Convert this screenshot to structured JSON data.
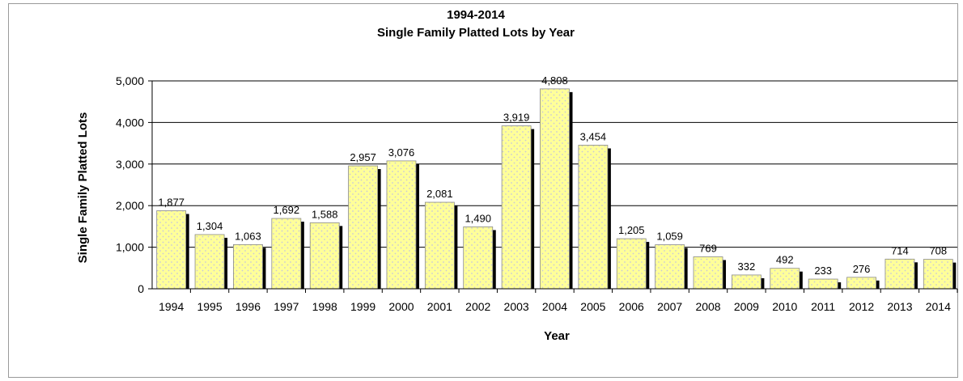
{
  "chart_data": {
    "type": "bar",
    "title": "1994-2014",
    "subtitle": "Single Family Platted Lots by Year",
    "xlabel": "Year",
    "ylabel": "Single Family Platted Lots",
    "ylim": [
      0,
      5000
    ],
    "yticks": [
      "0",
      "1,000",
      "2,000",
      "3,000",
      "4,000",
      "5,000"
    ],
    "grid": true,
    "legend": "none",
    "bar_color": "#ffff99",
    "bar_dot_color": "#c8c8d8",
    "shadow_color": "#000000",
    "categories": [
      "1994",
      "1995",
      "1996",
      "1997",
      "1998",
      "1999",
      "2000",
      "2001",
      "2002",
      "2003",
      "2004",
      "2005",
      "2006",
      "2007",
      "2008",
      "2009",
      "2010",
      "2011",
      "2012",
      "2013",
      "2014"
    ],
    "values": [
      1877,
      1304,
      1063,
      1692,
      1588,
      2957,
      3076,
      2081,
      1490,
      3919,
      4808,
      3454,
      1205,
      1059,
      769,
      332,
      492,
      233,
      276,
      714,
      708
    ],
    "data_labels": [
      "1,877",
      "1,304",
      "1,063",
      "1,692",
      "1,588",
      "2,957",
      "3,076",
      "2,081",
      "1,490",
      "3,919",
      "4,808",
      "3,454",
      "1,205",
      "1,059",
      "769",
      "332",
      "492",
      "233",
      "276",
      "714",
      "708"
    ]
  }
}
